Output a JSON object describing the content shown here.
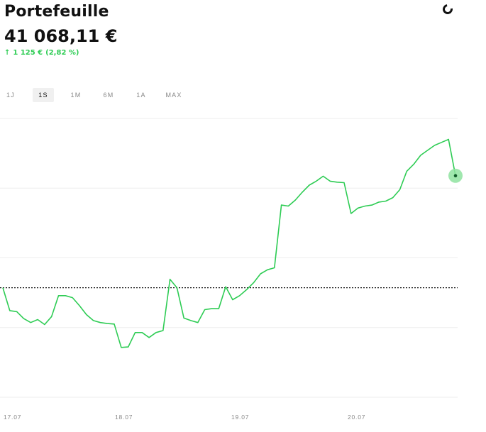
{
  "header": {
    "title": "Portefeuille",
    "value": "41 068,11 €",
    "change_arrow": "↑",
    "change_amount": "1 125 €",
    "change_percent": "(2,82 %)",
    "loading_icon": "spinner-icon"
  },
  "ranges": [
    "1J",
    "1S",
    "1M",
    "6M",
    "1A",
    "MAX"
  ],
  "active_range": "1S",
  "colors": {
    "line": "#2ecc54",
    "marker": "#8fe3a0",
    "baseline": "#111111",
    "grid": "#eeeeee"
  },
  "chart_data": {
    "type": "line",
    "x_ticks": [
      "17.07",
      "18.07",
      "19.07",
      "20.07"
    ],
    "baseline": 0,
    "ylim": [
      -1100,
      1700
    ],
    "grid": true,
    "values": [
      0,
      -230,
      -240,
      -310,
      -350,
      -320,
      -370,
      -290,
      -80,
      -80,
      -100,
      -180,
      -270,
      -330,
      -350,
      -360,
      -365,
      -600,
      -595,
      -450,
      -450,
      -500,
      -450,
      -430,
      85,
      0,
      -305,
      -330,
      -350,
      -220,
      -210,
      -210,
      10,
      -120,
      -80,
      -20,
      50,
      140,
      180,
      200,
      830,
      820,
      880,
      960,
      1030,
      1070,
      1120,
      1070,
      1060,
      1055,
      745,
      800,
      820,
      830,
      860,
      870,
      905,
      985,
      1170,
      1240,
      1330,
      1380,
      1430,
      1460,
      1490,
      1125
    ]
  }
}
